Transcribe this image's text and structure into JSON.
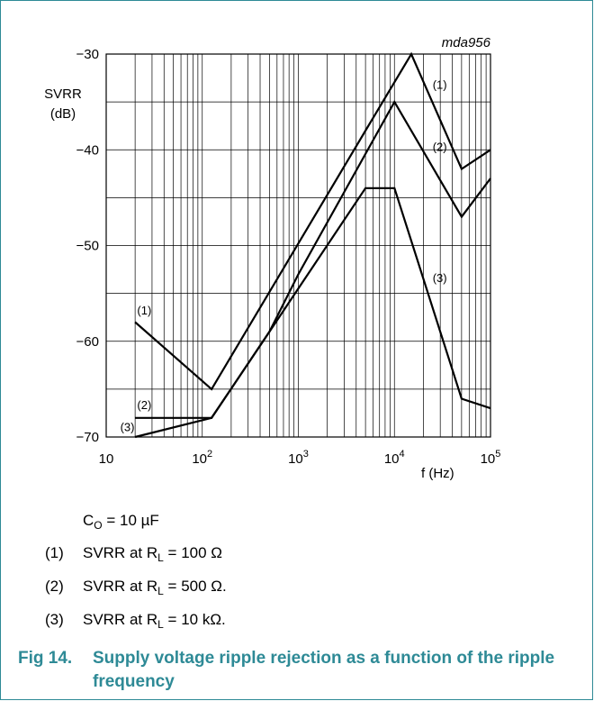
{
  "chart_data": {
    "type": "line",
    "id_label": "mda956",
    "ylabel_line1": "SVRR",
    "ylabel_line2": "(dB)",
    "xlabel": "f (Hz)",
    "xscale": "log",
    "xlim": [
      10,
      100000
    ],
    "ylim": [
      -70,
      -30
    ],
    "grid": true,
    "y_ticks": [
      {
        "value": -30,
        "label": "−30"
      },
      {
        "value": -40,
        "label": "−40"
      },
      {
        "value": -50,
        "label": "−50"
      },
      {
        "value": -60,
        "label": "−60"
      },
      {
        "value": -70,
        "label": "−70"
      }
    ],
    "x_ticks": [
      {
        "value": 10,
        "base": "10",
        "exp": ""
      },
      {
        "value": 100,
        "base": "10",
        "exp": "2"
      },
      {
        "value": 1000,
        "base": "10",
        "exp": "3"
      },
      {
        "value": 10000,
        "base": "10",
        "exp": "4"
      },
      {
        "value": 100000,
        "base": "10",
        "exp": "5"
      }
    ],
    "series": [
      {
        "name": "(1)",
        "x": [
          20,
          125,
          5000,
          15000,
          50000,
          100000
        ],
        "y": [
          -58,
          -65,
          -38,
          -30,
          -42,
          -40
        ]
      },
      {
        "name": "(2)",
        "x": [
          20,
          125,
          500,
          1000,
          10000,
          50000,
          100000
        ],
        "y": [
          -68,
          -68,
          -59,
          -53,
          -35,
          -47,
          -43
        ]
      },
      {
        "name": "(3)",
        "x": [
          20,
          125,
          500,
          5000,
          10000,
          50000,
          100000
        ],
        "y": [
          -70,
          -68,
          -59,
          -44,
          -44,
          -66,
          -67
        ]
      }
    ],
    "series_tags": [
      {
        "text": "(1)",
        "x": 21,
        "y": -57.2
      },
      {
        "text": "(2)",
        "x": 21,
        "y": -67.1
      },
      {
        "text": "(3)",
        "x": 14,
        "y": -69.4
      },
      {
        "text": "(1)",
        "x": 25000,
        "y": -33.6
      },
      {
        "text": "(2)",
        "x": 25000,
        "y": -40.1
      },
      {
        "text": "(3)",
        "x": 25000,
        "y": -53.8
      }
    ]
  },
  "notes": {
    "condition": {
      "main": "C",
      "sub": "O",
      "rest": " = 10 µF"
    },
    "items": [
      {
        "num": "(1)",
        "pre": "SVRR at R",
        "sub": "L",
        "post": " = 100 Ω"
      },
      {
        "num": "(2)",
        "pre": "SVRR at R",
        "sub": "L",
        "post": " = 500 Ω."
      },
      {
        "num": "(3)",
        "pre": "SVRR at R",
        "sub": "L",
        "post": " = 10 kΩ."
      }
    ]
  },
  "caption": {
    "number": "Fig 14.",
    "text": "Supply voltage ripple rejection as a function of the ripple frequency"
  },
  "colors": {
    "accent": "#2e8a96",
    "line": "#000000",
    "grid": "#000000"
  }
}
